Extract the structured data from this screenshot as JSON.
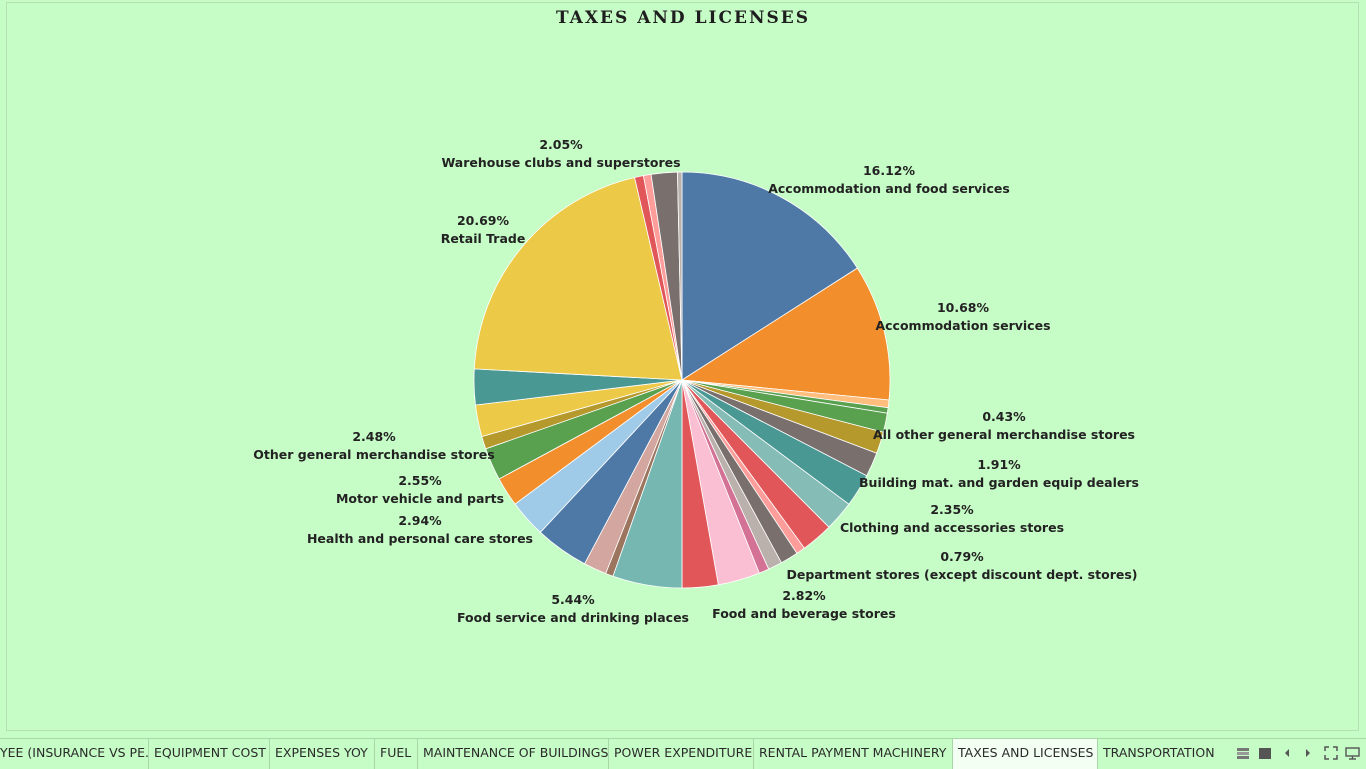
{
  "title": "TAXES AND LICENSES",
  "chart_data": {
    "type": "pie",
    "title": "TAXES AND LICENSES",
    "start_angle_deg": 0,
    "direction": "clockwise",
    "slices": [
      {
        "label": "Accommodation and food services",
        "value": 16.12,
        "color": "#4e79a7",
        "show_label": true
      },
      {
        "label": "Accommodation services",
        "value": 10.68,
        "color": "#f28e2b",
        "show_label": true
      },
      {
        "label": "",
        "value": 0.6,
        "color": "#ffbe7d",
        "show_label": false
      },
      {
        "label": "All other general merchandise stores",
        "value": 0.43,
        "color": "#59a14f",
        "show_label": true
      },
      {
        "label": "",
        "value": 1.5,
        "color": "#59a14f",
        "show_label": false
      },
      {
        "label": "",
        "value": 1.7,
        "color": "#b6992d",
        "show_label": false
      },
      {
        "label": "Building mat. and garden equip dealers",
        "value": 1.91,
        "color": "#79706e",
        "show_label": true
      },
      {
        "label": "",
        "value": 2.6,
        "color": "#499894",
        "show_label": false
      },
      {
        "label": "Clothing and accessories stores",
        "value": 2.35,
        "color": "#86bcb6",
        "show_label": true
      },
      {
        "label": "",
        "value": 2.5,
        "color": "#e15759",
        "show_label": false
      },
      {
        "label": "",
        "value": 0.7,
        "color": "#ff9d9a",
        "show_label": false
      },
      {
        "label": "",
        "value": 1.4,
        "color": "#79706e",
        "show_label": false
      },
      {
        "label": "",
        "value": 1.1,
        "color": "#bab0ac",
        "show_label": false
      },
      {
        "label": "Department stores (except discount dept. stores)",
        "value": 0.79,
        "color": "#d37295",
        "show_label": true
      },
      {
        "label": "",
        "value": 3.3,
        "color": "#fabfd2",
        "show_label": false
      },
      {
        "label": "Food and beverage stores",
        "value": 2.82,
        "color": "#e15759",
        "show_label": true
      },
      {
        "label": "Food service and drinking places",
        "value": 5.44,
        "color": "#76b7b2",
        "show_label": true
      },
      {
        "label": "",
        "value": 0.6,
        "color": "#9c755f",
        "show_label": false
      },
      {
        "label": "",
        "value": 1.8,
        "color": "#d4a6a0",
        "show_label": false
      },
      {
        "label": "",
        "value": 4.2,
        "color": "#4e79a7",
        "show_label": false
      },
      {
        "label": "Health and personal care stores",
        "value": 2.94,
        "color": "#a0cbe8",
        "show_label": true
      },
      {
        "label": "",
        "value": 2.3,
        "color": "#f28e2b",
        "show_label": false
      },
      {
        "label": "Motor vehicle and parts",
        "value": 2.55,
        "color": "#59a14f",
        "show_label": true
      },
      {
        "label": "",
        "value": 1.0,
        "color": "#b6992d",
        "show_label": false
      },
      {
        "label": "Other general merchandise stores",
        "value": 2.48,
        "color": "#edc948",
        "show_label": true
      },
      {
        "label": "",
        "value": 2.8,
        "color": "#499894",
        "show_label": false
      },
      {
        "label": "Retail Trade",
        "value": 20.69,
        "color": "#edc948",
        "show_label": true
      },
      {
        "label": "",
        "value": 0.7,
        "color": "#e15759",
        "show_label": false
      },
      {
        "label": "",
        "value": 0.6,
        "color": "#ff9d9a",
        "show_label": false
      },
      {
        "label": "Warehouse clubs and superstores",
        "value": 2.05,
        "color": "#79706e",
        "show_label": true
      },
      {
        "label": "",
        "value": 0.35,
        "color": "#bab0ac",
        "show_label": false
      }
    ]
  },
  "labels": [
    {
      "pct": "16.12%",
      "name": "Accommodation and food services"
    },
    {
      "pct": "10.68%",
      "name": "Accommodation services"
    },
    {
      "pct": "0.43%",
      "name": "All other general merchandise stores"
    },
    {
      "pct": "1.91%",
      "name": "Building mat. and garden equip dealers"
    },
    {
      "pct": "2.35%",
      "name": "Clothing and accessories stores"
    },
    {
      "pct": "0.79%",
      "name": "Department stores (except discount dept. stores)"
    },
    {
      "pct": "2.82%",
      "name": "Food and beverage stores"
    },
    {
      "pct": "5.44%",
      "name": "Food service and drinking places"
    },
    {
      "pct": "2.94%",
      "name": "Health and personal care stores"
    },
    {
      "pct": "2.55%",
      "name": "Motor vehicle and parts"
    },
    {
      "pct": "2.48%",
      "name": "Other general merchandise stores"
    },
    {
      "pct": "20.69%",
      "name": "Retail Trade"
    },
    {
      "pct": "2.05%",
      "name": "Warehouse clubs and superstores"
    }
  ],
  "tabs": [
    {
      "label": "YEE (INSURANCE VS PE...",
      "active": false
    },
    {
      "label": "EQUIPMENT COST",
      "active": false
    },
    {
      "label": "EXPENSES YOY",
      "active": false
    },
    {
      "label": "FUEL",
      "active": false
    },
    {
      "label": "MAINTENANCE OF BUILDINGS",
      "active": false
    },
    {
      "label": "POWER EXPENDITURE",
      "active": false
    },
    {
      "label": "RENTAL PAYMENT MACHINERY",
      "active": false
    },
    {
      "label": "TAXES AND LICENSES",
      "active": true
    },
    {
      "label": "TRANSPORTATION",
      "active": false
    }
  ],
  "controls": [
    {
      "name": "grid-view-icon"
    },
    {
      "name": "single-view-icon"
    },
    {
      "name": "prev-sheet-icon"
    },
    {
      "name": "next-sheet-icon"
    },
    {
      "name": "fullscreen-icon"
    },
    {
      "name": "presentation-icon"
    }
  ]
}
